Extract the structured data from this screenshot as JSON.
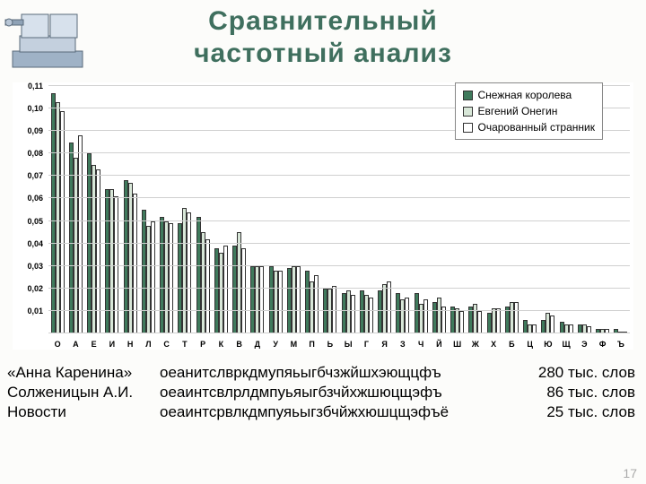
{
  "title": {
    "line1": "Сравнительный",
    "line2": "частотный анализ",
    "color": "#3f6f5e",
    "fontsize": 30
  },
  "icon_name": "metal-vise-icon",
  "background_color": "#fcfcfa",
  "page_number": "17",
  "legend": {
    "border_color": "#888888",
    "background": "#ffffff",
    "items": [
      {
        "label": "Снежная королева",
        "color": "#3f7a5c"
      },
      {
        "label": "Евгений Онегин",
        "color": "#d8e7d8"
      },
      {
        "label": "Очарованный странник",
        "color": "#ffffff"
      }
    ],
    "label_fontsize": 12
  },
  "chart": {
    "type": "bar",
    "ymax": 0.11,
    "ytick_step": 0.01,
    "yticks": [
      "0",
      "0,01",
      "0,02",
      "0,03",
      "0,04",
      "0,05",
      "0,06",
      "0,07",
      "0,08",
      "0,09",
      "0,10",
      "0,11"
    ],
    "ylabel_fontsize": 9,
    "xlabel_fontsize": 9,
    "grid_color": "#d0d0d0",
    "series_colors": [
      "#3f7a5c",
      "#d8e7d8",
      "#ffffff"
    ],
    "bar_border": "#333333",
    "categories": [
      "О",
      "А",
      "Е",
      "И",
      "Н",
      "Л",
      "С",
      "Т",
      "Р",
      "К",
      "В",
      "Д",
      "У",
      "М",
      "П",
      "Ь",
      "Ы",
      "Г",
      "Я",
      "З",
      "Ч",
      "Й",
      "Ш",
      "Ж",
      "Х",
      "Б",
      "Ц",
      "Ю",
      "Щ",
      "Э",
      "Ф",
      "Ъ"
    ],
    "series": [
      [
        0.107,
        0.085,
        0.08,
        0.064,
        0.068,
        0.055,
        0.052,
        0.049,
        0.052,
        0.038,
        0.039,
        0.03,
        0.03,
        0.029,
        0.028,
        0.02,
        0.018,
        0.019,
        0.019,
        0.018,
        0.018,
        0.014,
        0.012,
        0.012,
        0.009,
        0.012,
        0.006,
        0.006,
        0.005,
        0.004,
        0.002,
        0.002
      ],
      [
        0.103,
        0.078,
        0.075,
        0.064,
        0.067,
        0.048,
        0.05,
        0.056,
        0.045,
        0.036,
        0.045,
        0.03,
        0.028,
        0.03,
        0.023,
        0.02,
        0.019,
        0.017,
        0.022,
        0.015,
        0.013,
        0.016,
        0.011,
        0.013,
        0.011,
        0.014,
        0.004,
        0.009,
        0.004,
        0.004,
        0.002,
        0.001
      ],
      [
        0.099,
        0.088,
        0.073,
        0.061,
        0.062,
        0.05,
        0.049,
        0.054,
        0.042,
        0.039,
        0.038,
        0.03,
        0.028,
        0.03,
        0.026,
        0.021,
        0.017,
        0.016,
        0.023,
        0.016,
        0.015,
        0.012,
        0.01,
        0.01,
        0.011,
        0.014,
        0.004,
        0.008,
        0.004,
        0.003,
        0.002,
        0.001
      ]
    ]
  },
  "text_rows": {
    "fontsize": 17,
    "rows": [
      {
        "title": "«Анна Каренина»",
        "seq": "оеанитслвркдмупяьыгбчзжйшхэющцфъ",
        "count": "280 тыс. слов"
      },
      {
        "title": "Солженицын А.И.",
        "seq": "оеаинтсвлрлдмпуьяыгбзчйхжшюцщэфъ",
        "count": "86 тыс. слов"
      },
      {
        "title": "Новости",
        "seq": "оеаинтсрвлкдмпуяьыгзбчйжхюшцщэфъё",
        "count": "25 тыс. слов"
      }
    ]
  }
}
